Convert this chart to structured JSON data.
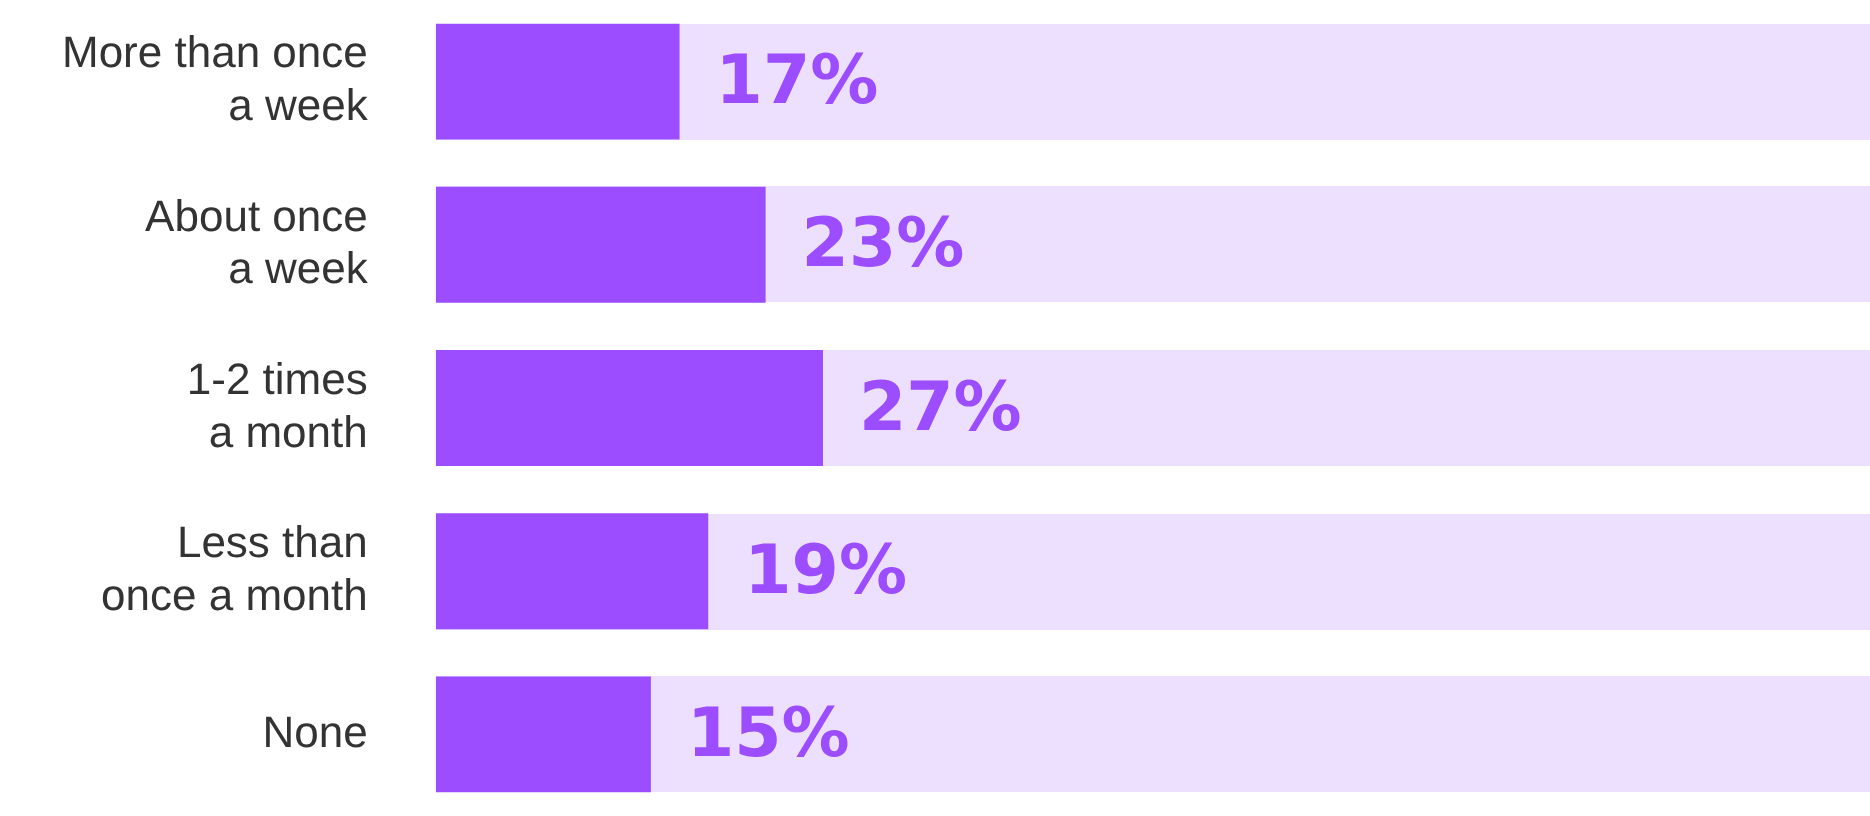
{
  "chart_data": {
    "type": "bar",
    "orientation": "horizontal",
    "categories": [
      "More than once\na week",
      "About once\na week",
      "1-2 times\na month",
      "Less than\nonce a month",
      "None"
    ],
    "values": [
      17,
      23,
      27,
      19,
      15
    ],
    "value_labels": [
      "17%",
      "23%",
      "27%",
      "19%",
      "15%"
    ],
    "color": "#9b4dff",
    "xlim": [
      0,
      100
    ],
    "tick_labels": "y",
    "legend": false
  }
}
